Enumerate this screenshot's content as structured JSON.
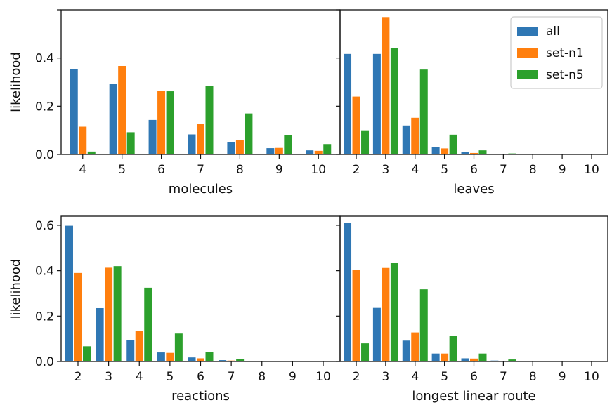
{
  "colors": {
    "all": "#2f77b4",
    "set-n1": "#ff7f0e",
    "set-n5": "#2ca02c",
    "axis": "#111111",
    "legend_border": "#cccccc"
  },
  "legend": {
    "placement": "top-right of upper-right panel",
    "entries": [
      {
        "label": "all",
        "color": "#2f77b4"
      },
      {
        "label": "set-n1",
        "color": "#ff7f0e"
      },
      {
        "label": "set-n5",
        "color": "#2ca02c"
      }
    ]
  },
  "chart_data": [
    {
      "type": "bar",
      "panel": "top-left",
      "xlabel": "molecules",
      "ylabel": "likelihood",
      "ylim": [
        0,
        0.6
      ],
      "yticks": [
        "0.0",
        "0.2",
        "0.4"
      ],
      "categories": [
        "4",
        "5",
        "6",
        "7",
        "8",
        "9",
        "10"
      ],
      "series": [
        {
          "name": "all",
          "values": [
            0.355,
            0.293,
            0.143,
            0.083,
            0.05,
            0.026,
            0.017
          ]
        },
        {
          "name": "set-n1",
          "values": [
            0.115,
            0.367,
            0.265,
            0.128,
            0.06,
            0.027,
            0.015
          ]
        },
        {
          "name": "set-n5",
          "values": [
            0.012,
            0.092,
            0.262,
            0.283,
            0.17,
            0.08,
            0.043
          ]
        }
      ]
    },
    {
      "type": "bar",
      "panel": "top-right",
      "xlabel": "leaves",
      "ylabel": "",
      "ylim": [
        0,
        0.6
      ],
      "yticks": [],
      "categories": [
        "2",
        "3",
        "4",
        "5",
        "6",
        "7",
        "8",
        "9",
        "10"
      ],
      "series": [
        {
          "name": "all",
          "values": [
            0.417,
            0.417,
            0.12,
            0.032,
            0.01,
            0.002,
            0.001,
            0.0,
            0.0
          ]
        },
        {
          "name": "set-n1",
          "values": [
            0.24,
            0.57,
            0.152,
            0.025,
            0.006,
            0.001,
            0.0,
            0.0,
            0.0
          ]
        },
        {
          "name": "set-n5",
          "values": [
            0.1,
            0.442,
            0.352,
            0.082,
            0.017,
            0.004,
            0.001,
            0.0,
            0.0
          ]
        }
      ]
    },
    {
      "type": "bar",
      "panel": "bottom-left",
      "xlabel": "reactions",
      "ylabel": "likelihood",
      "ylim": [
        0,
        0.64
      ],
      "yticks": [
        "0.0",
        "0.2",
        "0.4",
        "0.6"
      ],
      "categories": [
        "2",
        "3",
        "4",
        "5",
        "6",
        "7",
        "8",
        "9",
        "10"
      ],
      "series": [
        {
          "name": "all",
          "values": [
            0.598,
            0.235,
            0.093,
            0.04,
            0.018,
            0.006,
            0.002,
            0.0,
            0.0
          ]
        },
        {
          "name": "set-n1",
          "values": [
            0.39,
            0.413,
            0.133,
            0.038,
            0.014,
            0.004,
            0.001,
            0.0,
            0.0
          ]
        },
        {
          "name": "set-n5",
          "values": [
            0.067,
            0.42,
            0.325,
            0.123,
            0.043,
            0.011,
            0.003,
            0.0,
            0.0
          ]
        }
      ]
    },
    {
      "type": "bar",
      "panel": "bottom-right",
      "xlabel": "longest linear route",
      "ylabel": "",
      "ylim": [
        0,
        0.64
      ],
      "yticks": [],
      "categories": [
        "2",
        "3",
        "4",
        "5",
        "6",
        "7",
        "8",
        "9",
        "10"
      ],
      "series": [
        {
          "name": "all",
          "values": [
            0.612,
            0.236,
            0.092,
            0.035,
            0.014,
            0.004,
            0.001,
            0.0,
            0.0
          ]
        },
        {
          "name": "set-n1",
          "values": [
            0.402,
            0.412,
            0.128,
            0.035,
            0.013,
            0.003,
            0.001,
            0.0,
            0.0
          ]
        },
        {
          "name": "set-n5",
          "values": [
            0.08,
            0.435,
            0.318,
            0.112,
            0.035,
            0.009,
            0.002,
            0.0,
            0.0
          ]
        }
      ]
    }
  ]
}
